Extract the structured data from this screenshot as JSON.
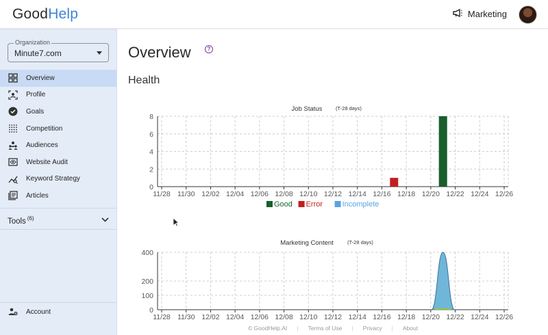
{
  "header": {
    "logo_part1": "Good",
    "logo_part2": "Help",
    "team_label": "Marketing",
    "team_icon": "megaphone-icon",
    "accent_color": "#3d83d6"
  },
  "sidebar": {
    "org_label": "Organization",
    "org_value": "Minute7.com",
    "items": [
      {
        "label": "Overview",
        "icon": "dashboard-icon",
        "active": true
      },
      {
        "label": "Profile",
        "icon": "profile-icon",
        "active": false
      },
      {
        "label": "Goals",
        "icon": "check-circle-icon",
        "active": false
      },
      {
        "label": "Competition",
        "icon": "grid-dots-icon",
        "active": false
      },
      {
        "label": "Audiences",
        "icon": "audience-icon",
        "active": false
      },
      {
        "label": "Website Audit",
        "icon": "eye-icon",
        "active": false
      },
      {
        "label": "Keyword Strategy",
        "icon": "trend-icon",
        "active": false
      },
      {
        "label": "Articles",
        "icon": "articles-icon",
        "active": false
      }
    ],
    "tools_label": "Tools",
    "tools_count": "(6)",
    "account_label": "Account"
  },
  "main": {
    "title": "Overview",
    "section": "Health"
  },
  "chart_data": [
    {
      "type": "bar",
      "title": "Job Status",
      "subtitle": "(T-28 days)",
      "x_ticks": [
        "11/28",
        "11/30",
        "12/02",
        "12/04",
        "12/06",
        "12/08",
        "12/10",
        "12/12",
        "12/14",
        "12/16",
        "12/18",
        "12/20",
        "12/22",
        "12/24",
        "12/26"
      ],
      "ylim": [
        0,
        8
      ],
      "y_ticks": [
        0,
        2,
        4,
        6,
        8
      ],
      "grid": true,
      "legend_position": "bottom",
      "series": [
        {
          "name": "Good",
          "color": "#1a5e2e",
          "points": [
            {
              "x": "12/21",
              "y": 8
            }
          ]
        },
        {
          "name": "Error",
          "color": "#c0201f",
          "points": [
            {
              "x": "12/17",
              "y": 1
            }
          ]
        },
        {
          "name": "Incomplete",
          "color": "#5aa3e0",
          "points": []
        }
      ]
    },
    {
      "type": "area",
      "title": "Marketing Content",
      "subtitle": "(T-28 days)",
      "x_ticks": [
        "11/28",
        "11/30",
        "12/02",
        "12/04",
        "12/06",
        "12/08",
        "12/10",
        "12/12",
        "12/14",
        "12/16",
        "12/18",
        "12/20",
        "12/22",
        "12/24",
        "12/26"
      ],
      "ylim": [
        0,
        400
      ],
      "y_ticks": [
        0,
        100,
        200,
        400
      ],
      "grid": true,
      "series": [
        {
          "color": "#6fb6d8",
          "peak_x": "12/21",
          "peak_y": 400
        }
      ]
    }
  ],
  "footer": {
    "copyright": "© GoodHelp.AI",
    "terms": "Terms of Use",
    "privacy": "Privacy",
    "about": "About"
  }
}
